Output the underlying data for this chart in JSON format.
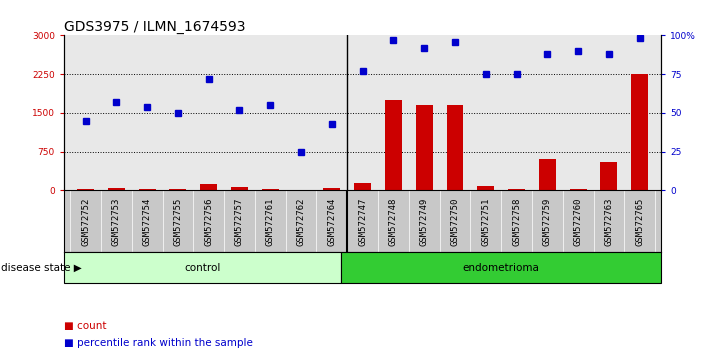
{
  "title": "GDS3975 / ILMN_1674593",
  "samples": [
    "GSM572752",
    "GSM572753",
    "GSM572754",
    "GSM572755",
    "GSM572756",
    "GSM572757",
    "GSM572761",
    "GSM572762",
    "GSM572764",
    "GSM572747",
    "GSM572748",
    "GSM572749",
    "GSM572750",
    "GSM572751",
    "GSM572758",
    "GSM572759",
    "GSM572760",
    "GSM572763",
    "GSM572765"
  ],
  "counts": [
    30,
    50,
    20,
    25,
    120,
    60,
    30,
    10,
    40,
    150,
    1750,
    1650,
    1650,
    90,
    20,
    600,
    20,
    550,
    2250
  ],
  "percentiles": [
    45,
    57,
    54,
    50,
    72,
    52,
    55,
    25,
    43,
    77,
    97,
    92,
    96,
    75,
    75,
    88,
    90,
    88,
    98
  ],
  "n_control": 9,
  "n_endometrioma": 10,
  "control_label": "control",
  "endometrioma_label": "endometrioma",
  "disease_state_label": "disease state",
  "count_label": "count",
  "percentile_label": "percentile rank within the sample",
  "ylim_left": [
    0,
    3000
  ],
  "ylim_right": [
    0,
    100
  ],
  "yticks_left": [
    0,
    750,
    1500,
    2250,
    3000
  ],
  "yticks_right": [
    0,
    25,
    50,
    75,
    100
  ],
  "bar_color": "#cc0000",
  "dot_color": "#0000cc",
  "control_bg": "#ccffcc",
  "endo_bg": "#33cc33",
  "plot_bg": "#e8e8e8",
  "tick_area_bg": "#c8c8c8",
  "title_fontsize": 10,
  "tick_fontsize": 6.5,
  "label_fontsize": 7.5
}
